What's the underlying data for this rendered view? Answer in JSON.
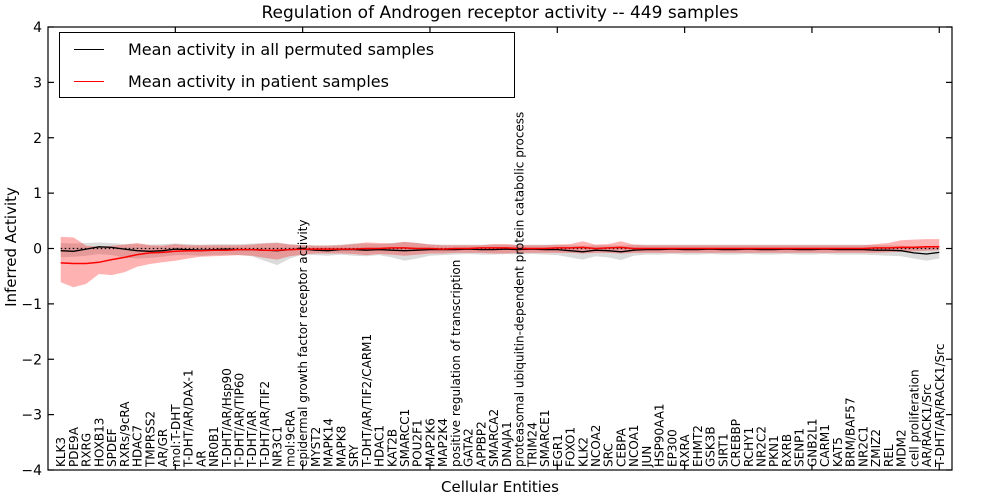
{
  "figure": {
    "title": "Regulation of Androgen receptor activity -- 449 samples",
    "xlabel": "Cellular Entities",
    "ylabel": "Inferred Activity"
  },
  "legend": {
    "entries": [
      {
        "label": "Mean activity in all permuted samples",
        "color": "#000000"
      },
      {
        "label": "Mean activity in patient samples",
        "color": "#ff0000"
      }
    ]
  },
  "chart_data": {
    "type": "line",
    "title": "Regulation of Androgen receptor activity -- 449 samples",
    "xlabel": "Cellular Entities",
    "ylabel": "Inferred Activity",
    "ylim": [
      -4,
      4
    ],
    "yticks": [
      -4,
      -3,
      -2,
      -1,
      0,
      1,
      2,
      3,
      4
    ],
    "xticks_numeric": [
      10,
      20,
      30,
      40,
      50,
      60,
      70
    ],
    "grid": false,
    "legend_position": "upper left",
    "zero_line": {
      "y": 0,
      "style": "dotted",
      "color": "#000000"
    },
    "categories": [
      "KLK3",
      "PDE9A",
      "RXRG",
      "HOXB13",
      "SPDEF",
      "RXRs/9cRA",
      "HDAC7",
      "TMPRSS2",
      "AR/GR",
      "mol:T-DHT",
      "T-DHT/AR/DAX-1",
      "AR",
      "NR0B1",
      "T-DHT/AR/Hsp90",
      "T-DHT/AR/TIP60",
      "T-DHT/AR",
      "T-DHT/AR/TIF2",
      "NR3C1",
      "mol:9cRA",
      "epidermal growth factor receptor activity",
      "MYST2",
      "MAPK14",
      "MAPK8",
      "SRY",
      "T-DHT/AR/TIF2/CARM1",
      "HDAC1",
      "KAT2B",
      "SMARCC1",
      "POU2F1",
      "MAP2K6",
      "MAP2K4",
      "positive regulation of transcription",
      "GATA2",
      "APPBP2",
      "SMARCA2",
      "DNAJA1",
      "proteasomal ubiquitin-dependent protein catabolic process",
      "TRIM24",
      "SMARCE1",
      "EGR1",
      "FOXO1",
      "KLK2",
      "NCOA2",
      "SRC",
      "CEBPA",
      "NCOA1",
      "JUN",
      "HSP90AA1",
      "EP300",
      "RXRA",
      "EHMT2",
      "GSK3B",
      "SIRT1",
      "CREBBP",
      "RCHY1",
      "NR2C2",
      "PKN1",
      "RXRB",
      "SENP1",
      "GNB2L1",
      "CARM1",
      "KAT5",
      "BRM/BAF57",
      "NR2C1",
      "ZMIZ2",
      "REL",
      "MDM2",
      "cell proliferation",
      "AR/RACK1/Src",
      "T-DHT/AR/RACK1/Src"
    ],
    "series": [
      {
        "name": "Mean activity in all permuted samples",
        "color": "#000000",
        "band_color": "rgba(0,0,0,0.14)",
        "mean": [
          -0.04,
          -0.05,
          -0.01,
          0.03,
          0.02,
          -0.01,
          -0.04,
          -0.05,
          -0.04,
          -0.01,
          -0.02,
          -0.03,
          -0.02,
          -0.01,
          -0.02,
          -0.02,
          -0.03,
          -0.04,
          -0.02,
          -0.01,
          -0.03,
          -0.04,
          -0.02,
          -0.02,
          -0.03,
          -0.02,
          -0.03,
          -0.04,
          -0.03,
          -0.02,
          -0.02,
          -0.02,
          -0.01,
          -0.02,
          -0.02,
          -0.01,
          -0.02,
          -0.01,
          -0.02,
          -0.02,
          -0.04,
          -0.06,
          -0.03,
          -0.04,
          -0.06,
          -0.03,
          -0.02,
          -0.02,
          -0.01,
          -0.02,
          -0.02,
          -0.01,
          -0.02,
          -0.02,
          -0.01,
          -0.02,
          -0.02,
          -0.01,
          -0.02,
          -0.02,
          -0.01,
          -0.02,
          -0.02,
          -0.02,
          -0.03,
          -0.03,
          -0.04,
          -0.08,
          -0.1,
          -0.07
        ],
        "upper": [
          0.1,
          0.09,
          0.1,
          0.11,
          0.1,
          0.08,
          0.08,
          0.07,
          0.08,
          0.09,
          0.08,
          0.07,
          0.08,
          0.08,
          0.08,
          0.09,
          0.1,
          0.11,
          0.08,
          0.07,
          0.06,
          0.06,
          0.07,
          0.09,
          0.09,
          0.08,
          0.1,
          0.12,
          0.1,
          0.08,
          0.07,
          0.07,
          0.07,
          0.07,
          0.07,
          0.07,
          0.07,
          0.07,
          0.07,
          0.07,
          0.06,
          0.05,
          0.06,
          0.06,
          0.05,
          0.07,
          0.07,
          0.07,
          0.07,
          0.07,
          0.07,
          0.07,
          0.07,
          0.07,
          0.07,
          0.07,
          0.07,
          0.07,
          0.07,
          0.07,
          0.07,
          0.07,
          0.07,
          0.07,
          0.06,
          0.06,
          0.05,
          0.04,
          0.04,
          0.05
        ],
        "lower": [
          -0.16,
          -0.15,
          -0.13,
          -0.1,
          -0.12,
          -0.16,
          -0.18,
          -0.17,
          -0.15,
          -0.12,
          -0.12,
          -0.13,
          -0.12,
          -0.11,
          -0.12,
          -0.14,
          -0.22,
          -0.3,
          -0.18,
          -0.11,
          -0.12,
          -0.13,
          -0.11,
          -0.13,
          -0.14,
          -0.12,
          -0.16,
          -0.22,
          -0.18,
          -0.13,
          -0.12,
          -0.11,
          -0.1,
          -0.11,
          -0.11,
          -0.1,
          -0.11,
          -0.1,
          -0.11,
          -0.12,
          -0.16,
          -0.2,
          -0.14,
          -0.16,
          -0.21,
          -0.13,
          -0.11,
          -0.11,
          -0.1,
          -0.11,
          -0.11,
          -0.1,
          -0.11,
          -0.11,
          -0.1,
          -0.11,
          -0.11,
          -0.1,
          -0.11,
          -0.11,
          -0.1,
          -0.11,
          -0.11,
          -0.11,
          -0.12,
          -0.13,
          -0.14,
          -0.18,
          -0.22,
          -0.18
        ]
      },
      {
        "name": "Mean activity in patient samples",
        "color": "#ff0000",
        "band_color": "rgba(255,0,0,0.30)",
        "mean": [
          -0.26,
          -0.27,
          -0.27,
          -0.25,
          -0.2,
          -0.16,
          -0.11,
          -0.08,
          -0.07,
          -0.05,
          -0.04,
          -0.04,
          -0.03,
          -0.03,
          -0.02,
          -0.02,
          -0.03,
          -0.03,
          -0.02,
          -0.01,
          -0.01,
          -0.01,
          -0.01,
          -0.01,
          0.0,
          0.0,
          0.01,
          0.01,
          0.0,
          0.0,
          -0.01,
          0.0,
          0.0,
          0.01,
          0.01,
          0.01,
          0.0,
          0.0,
          0.0,
          0.01,
          0.01,
          0.02,
          0.0,
          0.01,
          0.02,
          0.0,
          0.0,
          0.0,
          0.0,
          0.0,
          0.0,
          0.0,
          0.0,
          0.0,
          0.0,
          0.0,
          0.0,
          0.0,
          0.0,
          0.0,
          0.0,
          0.0,
          0.0,
          0.0,
          0.01,
          0.01,
          0.02,
          0.02,
          0.03,
          0.03
        ],
        "upper": [
          0.21,
          0.2,
          0.05,
          0.03,
          0.05,
          0.07,
          0.1,
          0.06,
          0.05,
          0.08,
          0.06,
          0.06,
          0.06,
          0.06,
          0.06,
          0.07,
          0.09,
          0.1,
          0.07,
          0.06,
          0.05,
          0.05,
          0.06,
          0.08,
          0.11,
          0.1,
          0.09,
          0.12,
          0.1,
          0.07,
          0.06,
          0.06,
          0.06,
          0.06,
          0.08,
          0.08,
          0.06,
          0.06,
          0.06,
          0.07,
          0.08,
          0.13,
          0.07,
          0.08,
          0.13,
          0.07,
          0.06,
          0.06,
          0.06,
          0.06,
          0.06,
          0.06,
          0.06,
          0.06,
          0.06,
          0.06,
          0.06,
          0.06,
          0.06,
          0.06,
          0.06,
          0.06,
          0.06,
          0.06,
          0.08,
          0.1,
          0.15,
          0.16,
          0.17,
          0.17
        ],
        "lower": [
          -0.61,
          -0.7,
          -0.64,
          -0.46,
          -0.48,
          -0.43,
          -0.33,
          -0.28,
          -0.25,
          -0.22,
          -0.18,
          -0.15,
          -0.14,
          -0.13,
          -0.12,
          -0.13,
          -0.17,
          -0.2,
          -0.14,
          -0.11,
          -0.09,
          -0.09,
          -0.09,
          -0.1,
          -0.12,
          -0.1,
          -0.11,
          -0.13,
          -0.11,
          -0.09,
          -0.09,
          -0.08,
          -0.08,
          -0.08,
          -0.09,
          -0.09,
          -0.08,
          -0.08,
          -0.08,
          -0.08,
          -0.08,
          -0.09,
          -0.08,
          -0.08,
          -0.09,
          -0.08,
          -0.08,
          -0.08,
          -0.08,
          -0.08,
          -0.08,
          -0.08,
          -0.08,
          -0.08,
          -0.08,
          -0.08,
          -0.08,
          -0.08,
          -0.08,
          -0.08,
          -0.08,
          -0.08,
          -0.08,
          -0.08,
          -0.08,
          -0.07,
          -0.06,
          -0.05,
          -0.04,
          -0.03
        ]
      }
    ]
  }
}
